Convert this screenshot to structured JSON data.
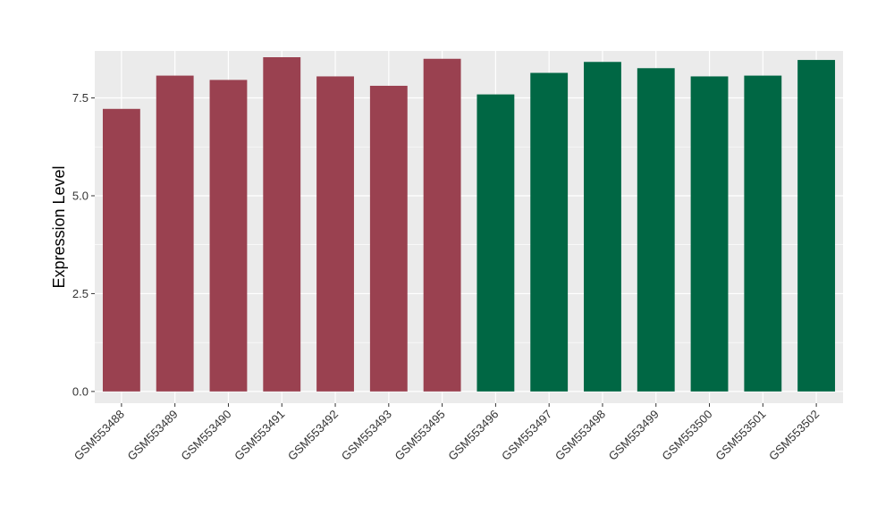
{
  "chart_data": {
    "type": "bar",
    "title": "",
    "xlabel": "",
    "ylabel": "Expression Level",
    "ylim": [
      -0.3,
      8.7
    ],
    "yticks": [
      0.0,
      2.5,
      5.0,
      7.5
    ],
    "ytick_labels": [
      "0.0",
      "2.5",
      "5.0",
      "7.5"
    ],
    "categories": [
      "GSM553488",
      "GSM553489",
      "GSM553490",
      "GSM553491",
      "GSM553492",
      "GSM553493",
      "GSM553495",
      "GSM553496",
      "GSM553497",
      "GSM553498",
      "GSM553499",
      "GSM553500",
      "GSM553501",
      "GSM553502"
    ],
    "values": [
      7.22,
      8.07,
      7.96,
      8.54,
      8.05,
      7.81,
      8.5,
      7.59,
      8.14,
      8.42,
      8.26,
      8.05,
      8.07,
      8.47
    ],
    "bar_colors": [
      "#9a4150",
      "#9a4150",
      "#9a4150",
      "#9a4150",
      "#9a4150",
      "#9a4150",
      "#9a4150",
      "#006744",
      "#006744",
      "#006744",
      "#006744",
      "#006744",
      "#006744",
      "#006744"
    ],
    "grid": true,
    "legend": "none",
    "panel_background": "#ebebeb",
    "grid_color": "#ffffff"
  }
}
